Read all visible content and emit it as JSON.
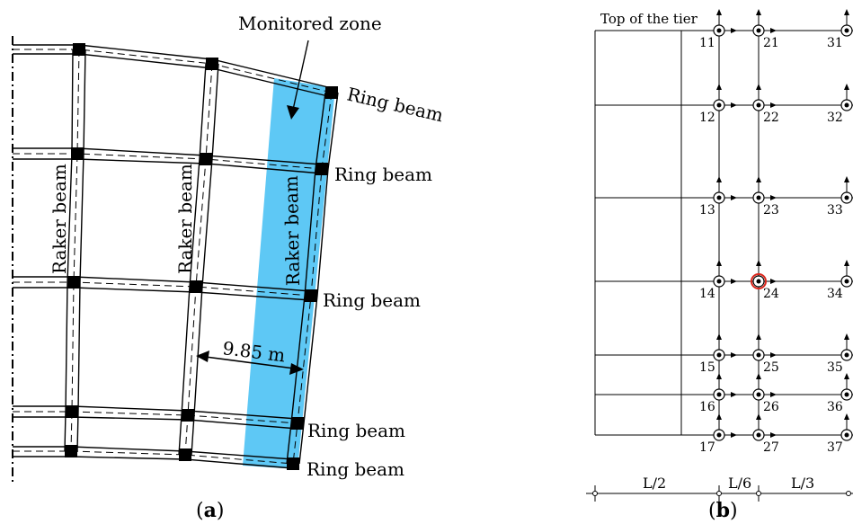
{
  "panel_a": {
    "monitored_zone_label": "Monitored zone",
    "ring_beam_label": "Ring beam",
    "raker_beam_label": "Raker beam",
    "span_label": "9.85 m",
    "highlight_color": "#5ec8f5"
  },
  "panel_b": {
    "top_label": "Top of the tier",
    "nodes": {
      "c1": [
        "11",
        "12",
        "13",
        "14",
        "15",
        "16",
        "17"
      ],
      "c2": [
        "21",
        "22",
        "23",
        "24",
        "25",
        "26",
        "27"
      ],
      "c3": [
        "31",
        "32",
        "33",
        "34",
        "35",
        "36",
        "37"
      ]
    },
    "dim_labels": [
      "L/2",
      "L/6",
      "L/3"
    ],
    "highlight_node": "24",
    "highlight_color": "#d9261c"
  },
  "captions": {
    "a": "(a)",
    "b": "(b)"
  }
}
